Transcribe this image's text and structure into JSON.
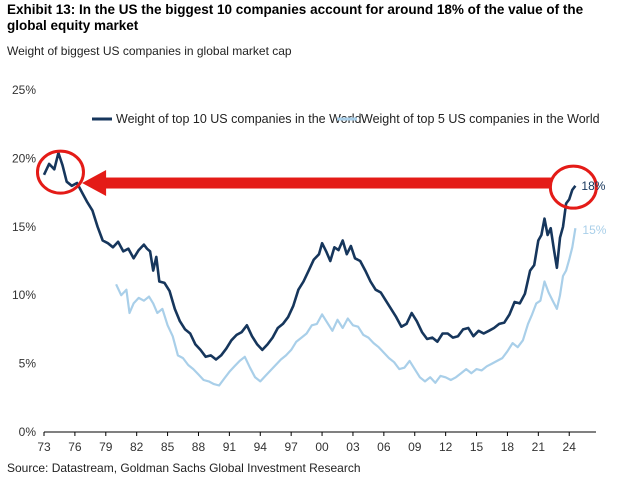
{
  "title": "Exhibit 13: In the US the biggest 10 companies account for around 18% of the value of the global equity market",
  "subtitle": "Weight of biggest US companies in global market cap",
  "source": "Source: Datastream, Goldman Sachs Global Investment Research",
  "colors": {
    "top10": "#16365c",
    "top5": "#a9cfe9",
    "arrow": "#e41b17",
    "axis": "#000000",
    "end_label_top10": "#16365c",
    "end_label_top5": "#a9cfe9"
  },
  "chart_data": {
    "type": "line",
    "xlabel": "",
    "ylabel": "",
    "xlim": [
      1973,
      2026.6
    ],
    "ylim": [
      0,
      25
    ],
    "x_ticks": [
      "73",
      "76",
      "79",
      "82",
      "85",
      "88",
      "91",
      "94",
      "97",
      "00",
      "03",
      "06",
      "09",
      "12",
      "15",
      "18",
      "21",
      "24"
    ],
    "x_tick_years": [
      1973,
      1976,
      1979,
      1982,
      1985,
      1988,
      1991,
      1994,
      1997,
      2000,
      2003,
      2006,
      2009,
      2012,
      2015,
      2018,
      2021,
      2024
    ],
    "y_ticks": [
      "0%",
      "5%",
      "10%",
      "15%",
      "20%",
      "25%"
    ],
    "y_tick_values": [
      0,
      5,
      10,
      15,
      20,
      25
    ],
    "grid": false,
    "legend_position": "top",
    "series": [
      {
        "name": "Weight of top 10 US companies in the World",
        "end_label": "18%",
        "points": [
          [
            1973.0,
            18.8
          ],
          [
            1973.5,
            19.6
          ],
          [
            1974.0,
            19.2
          ],
          [
            1974.4,
            20.4
          ],
          [
            1974.8,
            19.5
          ],
          [
            1975.2,
            18.3
          ],
          [
            1975.7,
            18.0
          ],
          [
            1976.2,
            18.2
          ],
          [
            1976.7,
            17.5
          ],
          [
            1977.2,
            16.8
          ],
          [
            1977.7,
            16.2
          ],
          [
            1978.2,
            15.0
          ],
          [
            1978.7,
            14.0
          ],
          [
            1979.2,
            13.8
          ],
          [
            1979.7,
            13.5
          ],
          [
            1980.2,
            13.9
          ],
          [
            1980.7,
            13.2
          ],
          [
            1981.2,
            13.4
          ],
          [
            1981.7,
            12.7
          ],
          [
            1982.2,
            13.3
          ],
          [
            1982.7,
            13.7
          ],
          [
            1983.0,
            13.4
          ],
          [
            1983.3,
            13.2
          ],
          [
            1983.6,
            11.8
          ],
          [
            1983.9,
            12.8
          ],
          [
            1984.2,
            11.0
          ],
          [
            1984.7,
            10.9
          ],
          [
            1985.2,
            10.3
          ],
          [
            1985.7,
            9.0
          ],
          [
            1986.2,
            8.1
          ],
          [
            1986.7,
            7.5
          ],
          [
            1987.2,
            7.2
          ],
          [
            1987.7,
            6.4
          ],
          [
            1988.2,
            6.0
          ],
          [
            1988.7,
            5.5
          ],
          [
            1989.2,
            5.6
          ],
          [
            1989.7,
            5.3
          ],
          [
            1990.2,
            5.6
          ],
          [
            1990.7,
            6.1
          ],
          [
            1991.2,
            6.7
          ],
          [
            1991.7,
            7.1
          ],
          [
            1992.2,
            7.3
          ],
          [
            1992.7,
            7.8
          ],
          [
            1993.2,
            7.0
          ],
          [
            1993.7,
            6.4
          ],
          [
            1994.2,
            6.0
          ],
          [
            1994.7,
            6.4
          ],
          [
            1995.2,
            6.9
          ],
          [
            1995.7,
            7.6
          ],
          [
            1996.2,
            7.9
          ],
          [
            1996.7,
            8.4
          ],
          [
            1997.2,
            9.2
          ],
          [
            1997.7,
            10.4
          ],
          [
            1998.2,
            11.0
          ],
          [
            1998.7,
            11.8
          ],
          [
            1999.2,
            12.6
          ],
          [
            1999.7,
            13.0
          ],
          [
            2000.0,
            13.8
          ],
          [
            2000.4,
            13.2
          ],
          [
            2000.8,
            12.5
          ],
          [
            2001.2,
            13.5
          ],
          [
            2001.6,
            13.3
          ],
          [
            2002.0,
            14.0
          ],
          [
            2002.4,
            13.0
          ],
          [
            2002.8,
            13.6
          ],
          [
            2003.2,
            12.7
          ],
          [
            2003.7,
            12.5
          ],
          [
            2004.2,
            11.8
          ],
          [
            2004.7,
            11.0
          ],
          [
            2005.2,
            10.4
          ],
          [
            2005.7,
            10.2
          ],
          [
            2006.2,
            9.6
          ],
          [
            2006.7,
            9.0
          ],
          [
            2007.2,
            8.4
          ],
          [
            2007.7,
            7.7
          ],
          [
            2008.2,
            7.9
          ],
          [
            2008.7,
            8.7
          ],
          [
            2009.2,
            8.1
          ],
          [
            2009.7,
            7.3
          ],
          [
            2010.2,
            6.8
          ],
          [
            2010.7,
            6.9
          ],
          [
            2011.2,
            6.6
          ],
          [
            2011.7,
            7.2
          ],
          [
            2012.2,
            7.2
          ],
          [
            2012.7,
            6.9
          ],
          [
            2013.2,
            7.0
          ],
          [
            2013.7,
            7.5
          ],
          [
            2014.2,
            7.6
          ],
          [
            2014.7,
            7.0
          ],
          [
            2015.2,
            7.4
          ],
          [
            2015.7,
            7.2
          ],
          [
            2016.2,
            7.4
          ],
          [
            2016.7,
            7.6
          ],
          [
            2017.2,
            7.9
          ],
          [
            2017.7,
            8.0
          ],
          [
            2018.2,
            8.6
          ],
          [
            2018.7,
            9.5
          ],
          [
            2019.2,
            9.4
          ],
          [
            2019.7,
            10.1
          ],
          [
            2020.2,
            11.8
          ],
          [
            2020.6,
            12.2
          ],
          [
            2021.0,
            14.0
          ],
          [
            2021.3,
            14.4
          ],
          [
            2021.6,
            15.6
          ],
          [
            2021.9,
            14.4
          ],
          [
            2022.2,
            14.9
          ],
          [
            2022.5,
            13.4
          ],
          [
            2022.8,
            12.0
          ],
          [
            2023.1,
            14.2
          ],
          [
            2023.4,
            15.0
          ],
          [
            2023.7,
            16.7
          ],
          [
            2024.0,
            17.0
          ],
          [
            2024.3,
            17.7
          ],
          [
            2024.6,
            18.0
          ]
        ]
      },
      {
        "name": "Weight of top 5 US companies in the World",
        "end_label": "15%",
        "points": [
          [
            1980.0,
            10.8
          ],
          [
            1980.5,
            10.0
          ],
          [
            1981.0,
            10.4
          ],
          [
            1981.3,
            8.7
          ],
          [
            1981.7,
            9.4
          ],
          [
            1982.2,
            9.8
          ],
          [
            1982.7,
            9.6
          ],
          [
            1983.2,
            9.9
          ],
          [
            1983.6,
            9.4
          ],
          [
            1984.0,
            8.7
          ],
          [
            1984.5,
            9.0
          ],
          [
            1985.0,
            7.8
          ],
          [
            1985.5,
            7.0
          ],
          [
            1986.0,
            5.6
          ],
          [
            1986.5,
            5.4
          ],
          [
            1987.0,
            4.9
          ],
          [
            1987.5,
            4.6
          ],
          [
            1988.0,
            4.2
          ],
          [
            1988.5,
            3.8
          ],
          [
            1989.0,
            3.7
          ],
          [
            1989.5,
            3.5
          ],
          [
            1990.0,
            3.4
          ],
          [
            1990.5,
            3.9
          ],
          [
            1991.0,
            4.4
          ],
          [
            1991.5,
            4.8
          ],
          [
            1992.0,
            5.2
          ],
          [
            1992.5,
            5.5
          ],
          [
            1993.0,
            4.7
          ],
          [
            1993.5,
            4.0
          ],
          [
            1994.0,
            3.7
          ],
          [
            1994.5,
            4.1
          ],
          [
            1995.0,
            4.5
          ],
          [
            1995.5,
            4.9
          ],
          [
            1996.0,
            5.3
          ],
          [
            1996.5,
            5.6
          ],
          [
            1997.0,
            6.0
          ],
          [
            1997.5,
            6.6
          ],
          [
            1998.0,
            6.9
          ],
          [
            1998.5,
            7.2
          ],
          [
            1999.0,
            7.8
          ],
          [
            1999.5,
            7.9
          ],
          [
            2000.0,
            8.6
          ],
          [
            2000.5,
            8.0
          ],
          [
            2001.0,
            7.4
          ],
          [
            2001.5,
            8.2
          ],
          [
            2002.0,
            7.6
          ],
          [
            2002.5,
            8.3
          ],
          [
            2003.0,
            7.8
          ],
          [
            2003.5,
            7.7
          ],
          [
            2004.0,
            7.1
          ],
          [
            2004.5,
            6.9
          ],
          [
            2005.0,
            6.5
          ],
          [
            2005.5,
            6.2
          ],
          [
            2006.0,
            5.8
          ],
          [
            2006.5,
            5.4
          ],
          [
            2007.0,
            5.1
          ],
          [
            2007.5,
            4.6
          ],
          [
            2008.0,
            4.7
          ],
          [
            2008.5,
            5.2
          ],
          [
            2009.0,
            4.6
          ],
          [
            2009.5,
            4.0
          ],
          [
            2010.0,
            3.7
          ],
          [
            2010.5,
            4.0
          ],
          [
            2011.0,
            3.6
          ],
          [
            2011.5,
            4.1
          ],
          [
            2012.0,
            4.0
          ],
          [
            2012.5,
            3.8
          ],
          [
            2013.0,
            4.0
          ],
          [
            2013.5,
            4.3
          ],
          [
            2014.0,
            4.6
          ],
          [
            2014.5,
            4.3
          ],
          [
            2015.0,
            4.6
          ],
          [
            2015.5,
            4.5
          ],
          [
            2016.0,
            4.8
          ],
          [
            2016.5,
            5.0
          ],
          [
            2017.0,
            5.2
          ],
          [
            2017.5,
            5.4
          ],
          [
            2018.0,
            5.9
          ],
          [
            2018.5,
            6.5
          ],
          [
            2019.0,
            6.2
          ],
          [
            2019.5,
            6.7
          ],
          [
            2020.0,
            7.9
          ],
          [
            2020.4,
            8.6
          ],
          [
            2020.8,
            9.4
          ],
          [
            2021.2,
            9.6
          ],
          [
            2021.6,
            11.0
          ],
          [
            2022.0,
            10.2
          ],
          [
            2022.4,
            9.6
          ],
          [
            2022.8,
            9.0
          ],
          [
            2023.1,
            10.0
          ],
          [
            2023.4,
            11.4
          ],
          [
            2023.7,
            11.8
          ],
          [
            2024.0,
            12.6
          ],
          [
            2024.3,
            13.5
          ],
          [
            2024.6,
            14.9
          ]
        ]
      }
    ],
    "annotations": [
      {
        "type": "circle",
        "at": [
          1974.6,
          19.0
        ],
        "color": "#e41b17"
      },
      {
        "type": "circle",
        "at": [
          2024.4,
          17.9
        ],
        "color": "#e41b17"
      },
      {
        "type": "arrow",
        "from": [
          2022.3,
          18.2
        ],
        "to": [
          1976.7,
          18.2
        ],
        "color": "#e41b17"
      }
    ]
  }
}
